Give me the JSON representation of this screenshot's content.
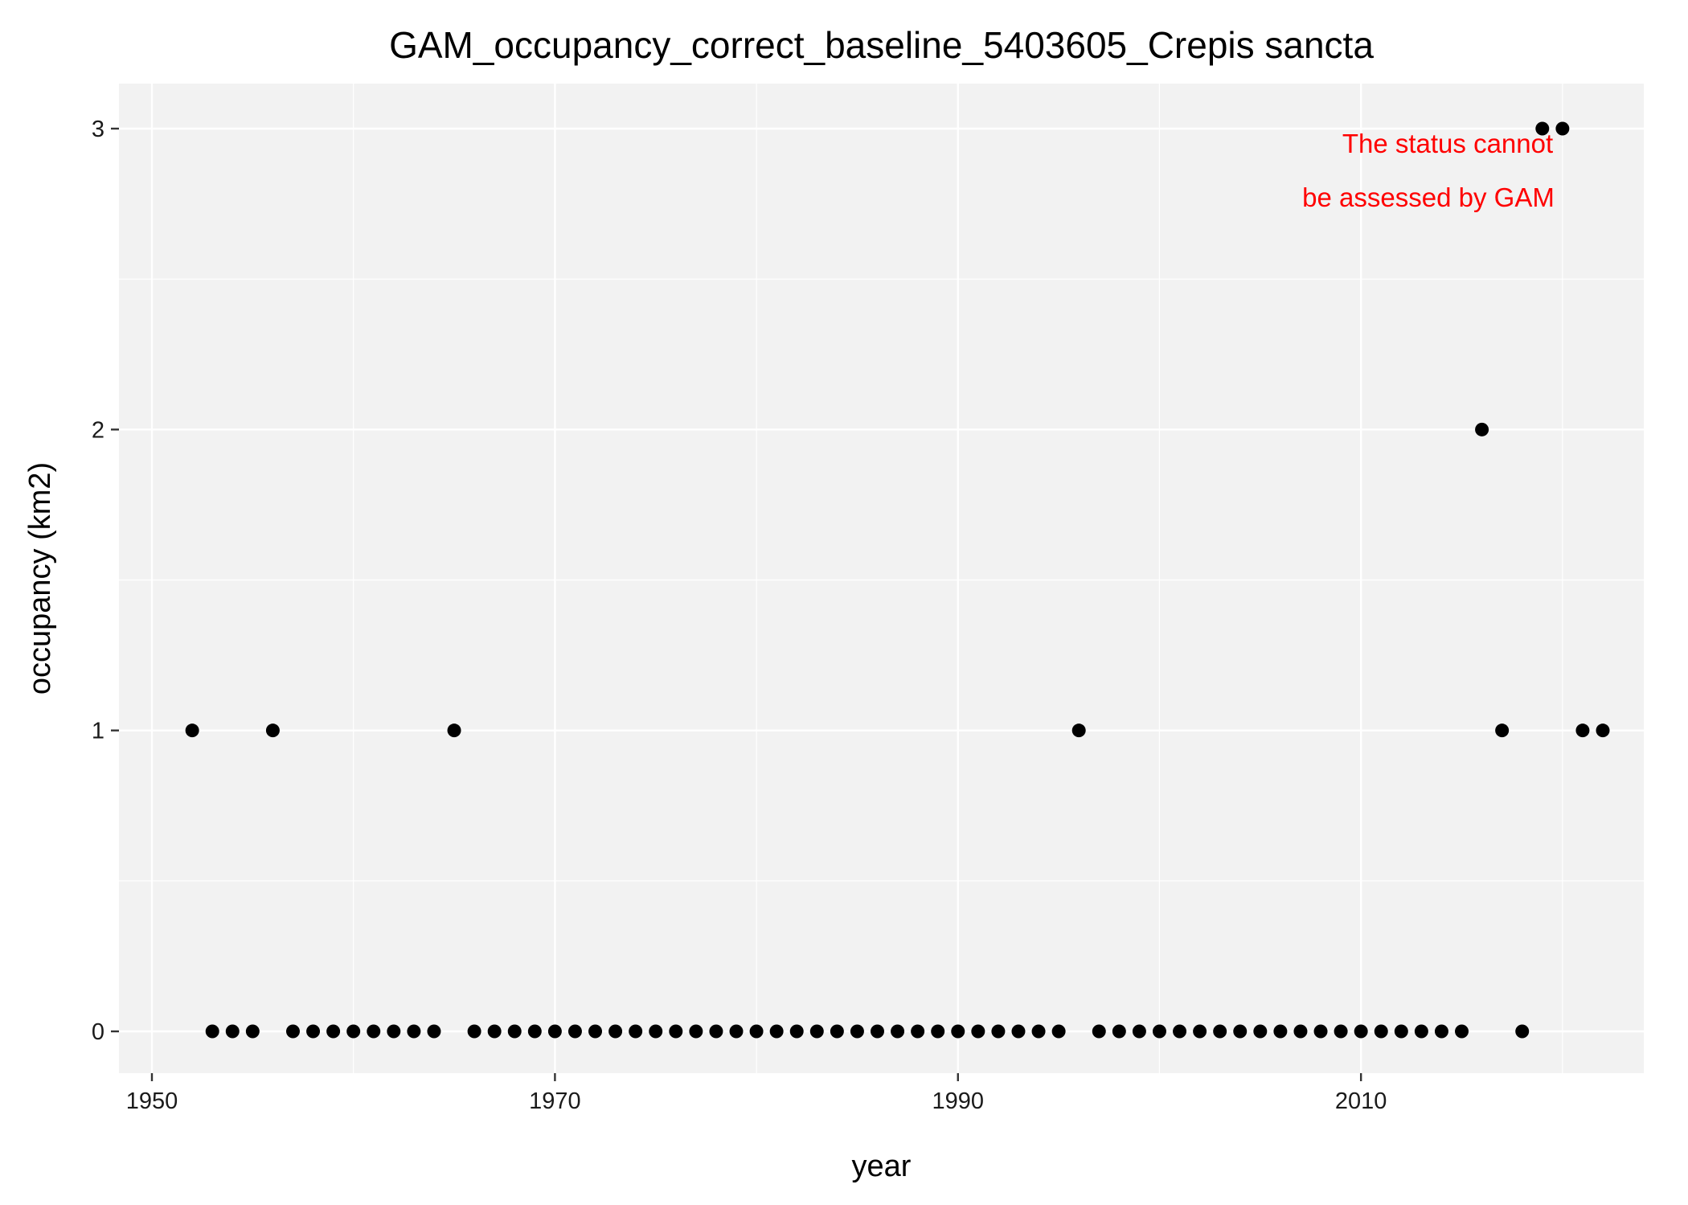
{
  "chart_data": {
    "type": "scatter",
    "title": "GAM_occupancy_correct_baseline_5403605_Crepis sancta",
    "xlabel": "year",
    "ylabel": "occupancy (km2)",
    "xlim": [
      1950,
      2022
    ],
    "ylim": [
      0,
      3
    ],
    "x_ticks": [
      1950,
      1970,
      1990,
      2010
    ],
    "y_ticks": [
      0,
      1,
      2,
      3
    ],
    "grid": true,
    "legend": "none",
    "annotation": {
      "lines": [
        "The status cannot",
        "be assessed by GAM"
      ],
      "color": "#ff0000"
    },
    "colors": {
      "panel_background": "#f2f2f2",
      "grid": "#ffffff",
      "points": "#000000"
    },
    "points": [
      {
        "x": 1952,
        "y": 1
      },
      {
        "x": 1953,
        "y": 0
      },
      {
        "x": 1954,
        "y": 0
      },
      {
        "x": 1955,
        "y": 0
      },
      {
        "x": 1956,
        "y": 1
      },
      {
        "x": 1957,
        "y": 0
      },
      {
        "x": 1958,
        "y": 0
      },
      {
        "x": 1959,
        "y": 0
      },
      {
        "x": 1960,
        "y": 0
      },
      {
        "x": 1961,
        "y": 0
      },
      {
        "x": 1962,
        "y": 0
      },
      {
        "x": 1963,
        "y": 0
      },
      {
        "x": 1964,
        "y": 0
      },
      {
        "x": 1965,
        "y": 1
      },
      {
        "x": 1966,
        "y": 0
      },
      {
        "x": 1967,
        "y": 0
      },
      {
        "x": 1968,
        "y": 0
      },
      {
        "x": 1969,
        "y": 0
      },
      {
        "x": 1970,
        "y": 0
      },
      {
        "x": 1971,
        "y": 0
      },
      {
        "x": 1972,
        "y": 0
      },
      {
        "x": 1973,
        "y": 0
      },
      {
        "x": 1974,
        "y": 0
      },
      {
        "x": 1975,
        "y": 0
      },
      {
        "x": 1976,
        "y": 0
      },
      {
        "x": 1977,
        "y": 0
      },
      {
        "x": 1978,
        "y": 0
      },
      {
        "x": 1979,
        "y": 0
      },
      {
        "x": 1980,
        "y": 0
      },
      {
        "x": 1981,
        "y": 0
      },
      {
        "x": 1982,
        "y": 0
      },
      {
        "x": 1983,
        "y": 0
      },
      {
        "x": 1984,
        "y": 0
      },
      {
        "x": 1985,
        "y": 0
      },
      {
        "x": 1986,
        "y": 0
      },
      {
        "x": 1987,
        "y": 0
      },
      {
        "x": 1988,
        "y": 0
      },
      {
        "x": 1989,
        "y": 0
      },
      {
        "x": 1990,
        "y": 0
      },
      {
        "x": 1991,
        "y": 0
      },
      {
        "x": 1992,
        "y": 0
      },
      {
        "x": 1993,
        "y": 0
      },
      {
        "x": 1994,
        "y": 0
      },
      {
        "x": 1995,
        "y": 0
      },
      {
        "x": 1996,
        "y": 1
      },
      {
        "x": 1997,
        "y": 0
      },
      {
        "x": 1998,
        "y": 0
      },
      {
        "x": 1999,
        "y": 0
      },
      {
        "x": 2000,
        "y": 0
      },
      {
        "x": 2001,
        "y": 0
      },
      {
        "x": 2002,
        "y": 0
      },
      {
        "x": 2003,
        "y": 0
      },
      {
        "x": 2004,
        "y": 0
      },
      {
        "x": 2005,
        "y": 0
      },
      {
        "x": 2006,
        "y": 0
      },
      {
        "x": 2007,
        "y": 0
      },
      {
        "x": 2008,
        "y": 0
      },
      {
        "x": 2009,
        "y": 0
      },
      {
        "x": 2010,
        "y": 0
      },
      {
        "x": 2011,
        "y": 0
      },
      {
        "x": 2012,
        "y": 0
      },
      {
        "x": 2013,
        "y": 0
      },
      {
        "x": 2014,
        "y": 0
      },
      {
        "x": 2015,
        "y": 0
      },
      {
        "x": 2016,
        "y": 2
      },
      {
        "x": 2017,
        "y": 1
      },
      {
        "x": 2018,
        "y": 0
      },
      {
        "x": 2019,
        "y": 3
      },
      {
        "x": 2020,
        "y": 3
      },
      {
        "x": 2021,
        "y": 1
      },
      {
        "x": 2022,
        "y": 1
      }
    ]
  }
}
